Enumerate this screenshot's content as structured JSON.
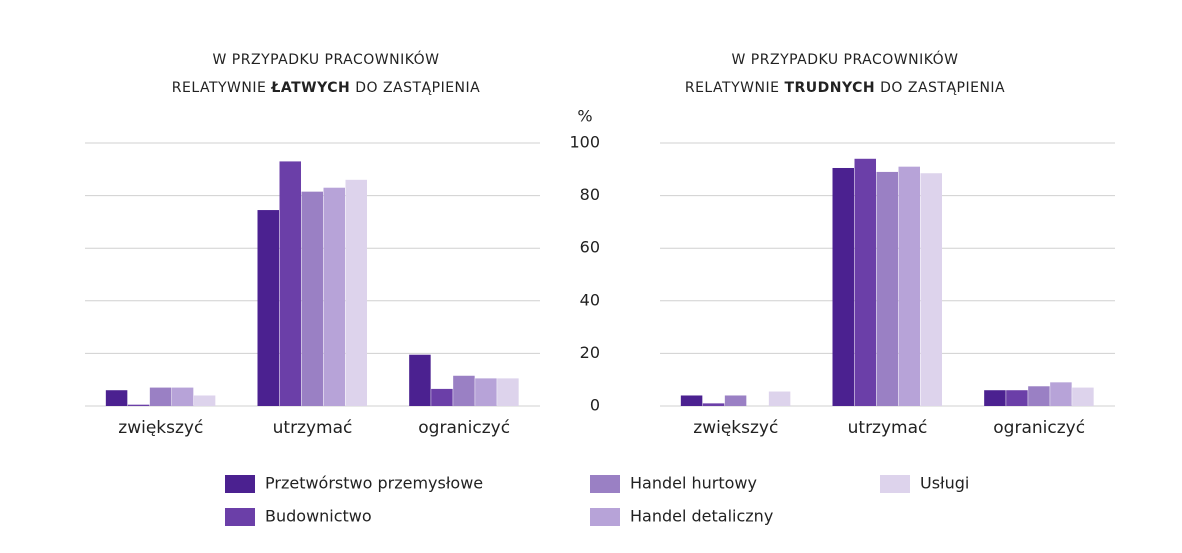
{
  "chart_data": [
    {
      "type": "bar",
      "title": {
        "line1": "W PRZYPADKU PRACOWNIKÓW",
        "line2_start": "RELATYWNIE",
        "line2_bold": "ŁATWYCH",
        "line2_end": "DO ZASTĄPIENIA"
      },
      "categories": [
        "zwiększyć",
        "utrzymać",
        "ograniczyć"
      ],
      "series": [
        {
          "name": "Przetwórstwo przemysłowe",
          "color": "#4b2190",
          "values": [
            6,
            74.5,
            19.5
          ]
        },
        {
          "name": "Budownictwo",
          "color": "#6b3fa8",
          "values": [
            0.5,
            93,
            6.5
          ]
        },
        {
          "name": "Handel hurtowy",
          "color": "#9a80c4",
          "values": [
            7,
            81.5,
            11.5
          ]
        },
        {
          "name": "Handel detaliczny",
          "color": "#b7a3d8",
          "values": [
            7,
            83,
            10.5
          ]
        },
        {
          "name": "Usługi",
          "color": "#ddd3ec",
          "values": [
            4,
            86,
            10.5
          ]
        }
      ],
      "ylim": [
        0,
        100
      ],
      "yticks": [
        0,
        20,
        40,
        60,
        80,
        100
      ],
      "grid": true
    },
    {
      "type": "bar",
      "title": {
        "line1": "W PRZYPADKU PRACOWNIKÓW",
        "line2_start": "RELATYWNIE",
        "line2_bold": "TRUDNYCH",
        "line2_end": "DO ZASTĄPIENIA"
      },
      "y_label": "%",
      "categories": [
        "zwiększyć",
        "utrzymać",
        "ograniczyć"
      ],
      "series": [
        {
          "color": "#4b2190",
          "values": [
            4,
            90.5,
            6
          ]
        },
        {
          "color": "#6b3fa8",
          "values": [
            1,
            94,
            6
          ]
        },
        {
          "color": "#9a80c4",
          "values": [
            4,
            89,
            7.5
          ]
        },
        {
          "color": "#b7a3d8",
          "values": [
            0,
            91,
            9
          ]
        },
        {
          "color": "#ddd3ec",
          "values": [
            5.5,
            88.5,
            7
          ]
        }
      ],
      "ylim": [
        0,
        100
      ],
      "yticks": [
        0,
        20,
        40,
        60,
        80,
        100
      ],
      "grid": true
    }
  ]
}
